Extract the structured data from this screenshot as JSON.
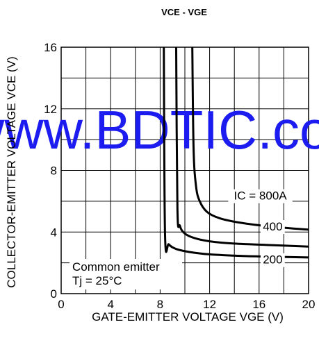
{
  "chart_data": {
    "type": "line",
    "title": "VCE - VGE",
    "xlabel": "GATE-EMITTER VOLTAGE  VGE (V)",
    "ylabel": "COLLECTOR-EMITTER VOLTAGE  VCE (V)",
    "xlim": [
      0,
      20
    ],
    "ylim": [
      0,
      16
    ],
    "x_ticks": [
      "0",
      "4",
      "8",
      "12",
      "16",
      "20"
    ],
    "y_ticks": [
      "0",
      "4",
      "8",
      "12",
      "16"
    ],
    "grid": true,
    "series": [
      {
        "name": "IC = 800A",
        "x": [
          10.6,
          10.7,
          10.9,
          11.2,
          11.8,
          12.8,
          14.5,
          17,
          20
        ],
        "y": [
          16,
          9.5,
          7,
          6,
          5.3,
          4.9,
          4.6,
          4.35,
          4.15
        ]
      },
      {
        "name": "400",
        "x": [
          9.3,
          9.4,
          9.6,
          10,
          10.8,
          12,
          14,
          17,
          20
        ],
        "y": [
          16,
          5.5,
          4.4,
          3.9,
          3.6,
          3.4,
          3.25,
          3.15,
          3.05
        ]
      },
      {
        "name": "200",
        "x": [
          8.3,
          8.4,
          8.7,
          9.3,
          10.4,
          12,
          14.5,
          17,
          20
        ],
        "y": [
          16,
          3.8,
          3.2,
          2.9,
          2.7,
          2.55,
          2.45,
          2.4,
          2.35
        ]
      }
    ],
    "annotations": [
      "Common emitter",
      "Tj = 25°C"
    ]
  },
  "watermark": "www.BDTIC.com",
  "colors": {
    "watermark": "#1c1cf0",
    "line": "#000000"
  }
}
